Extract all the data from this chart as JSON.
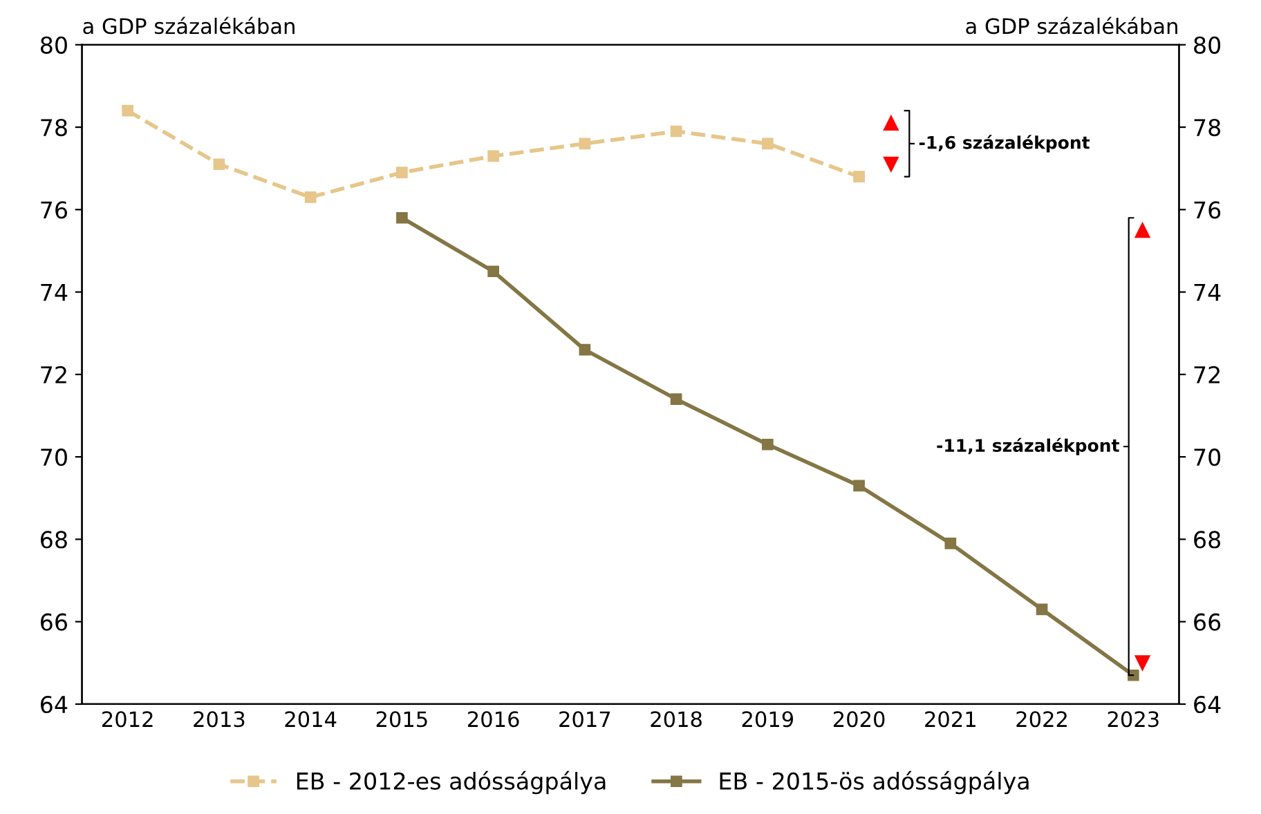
{
  "chart_data": {
    "type": "line",
    "ylabel": "a GDP százalékában",
    "y2label": "a GDP százalékában",
    "categories": [
      "2012",
      "2013",
      "2014",
      "2015",
      "2016",
      "2017",
      "2018",
      "2019",
      "2020",
      "2021",
      "2022",
      "2023"
    ],
    "series": [
      {
        "name": "EB - 2012-es adósságpálya",
        "color": "#e6c68a",
        "line_style": "dashed",
        "marker": "square",
        "values": [
          78.4,
          77.1,
          76.3,
          76.9,
          77.3,
          77.6,
          77.9,
          77.6,
          76.8,
          null,
          null,
          null
        ]
      },
      {
        "name": "EB - 2015-ös adósságpálya",
        "color": "#847645",
        "line_style": "solid",
        "marker": "square",
        "values": [
          null,
          null,
          null,
          75.8,
          74.5,
          72.6,
          71.4,
          70.3,
          69.3,
          67.9,
          66.3,
          64.7
        ]
      }
    ],
    "ylim": [
      64,
      80
    ],
    "yticks": [
      64,
      66,
      68,
      70,
      72,
      74,
      76,
      78,
      80
    ],
    "y2lim": [
      64,
      80
    ],
    "y2ticks": [
      64,
      66,
      68,
      70,
      72,
      74,
      76,
      78,
      80
    ],
    "grid": false,
    "legend": "bottom",
    "annotations": [
      "-1,6 százalékpont",
      "-11,1 százalékpont"
    ]
  }
}
